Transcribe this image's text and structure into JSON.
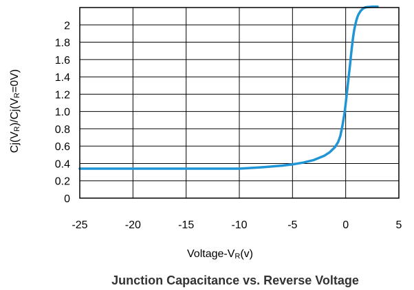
{
  "chart_data": {
    "type": "line",
    "title": "Junction Capacitance vs. Reverse Voltage",
    "xlabel": {
      "main": "Voltage-V",
      "sub": "R",
      "tail": "(v)"
    },
    "ylabel": {
      "p1": "Cj(V",
      "s1": "R",
      "p2": ")/Cj(V",
      "s2": "R",
      "p3": "=0V)"
    },
    "xlim": [
      -25,
      5
    ],
    "ylim": [
      0,
      2.2
    ],
    "x_ticks": [
      -25,
      -20,
      -15,
      -10,
      -5,
      0,
      5
    ],
    "x_tick_labels": [
      "-25",
      "-20",
      "-15",
      "-10",
      "-5",
      "0",
      "5"
    ],
    "x_grid": [
      -25,
      -20,
      -15,
      -10,
      -5,
      0,
      5
    ],
    "y_ticks": [
      0,
      0.2,
      0.4,
      0.6,
      0.8,
      1.0,
      1.2,
      1.4,
      1.6,
      1.8,
      2
    ],
    "y_tick_labels": [
      "0",
      "0.2",
      "0.4",
      "0.6",
      "0.8",
      "1.0",
      "1.2",
      "1.4",
      "1.6",
      "1.8",
      "2"
    ],
    "y_grid": [
      0.2,
      0.4,
      0.6,
      0.8,
      1.0,
      1.2,
      1.4,
      1.6,
      1.8,
      2.0
    ],
    "grid": true,
    "series": [
      {
        "color": "#1f95d6",
        "x": [
          -25,
          -20,
          -15,
          -12,
          -10,
          -8,
          -6,
          -5,
          -4,
          -3,
          -2,
          -1.5,
          -1,
          -0.7,
          -0.5,
          -0.3,
          -0.1,
          0,
          0.1,
          0.2,
          0.3,
          0.4,
          0.5,
          0.6,
          0.7,
          0.8,
          0.9,
          1.0,
          1.1,
          1.2,
          1.4,
          1.6,
          1.8,
          2.0,
          2.5,
          3.0
        ],
        "y": [
          0.34,
          0.34,
          0.34,
          0.34,
          0.34,
          0.355,
          0.375,
          0.39,
          0.41,
          0.44,
          0.49,
          0.53,
          0.59,
          0.65,
          0.72,
          0.84,
          0.99,
          1.09,
          1.2,
          1.31,
          1.42,
          1.53,
          1.65,
          1.76,
          1.86,
          1.94,
          2.0,
          2.05,
          2.09,
          2.12,
          2.16,
          2.185,
          2.2,
          2.205,
          2.21,
          2.21
        ]
      }
    ]
  }
}
